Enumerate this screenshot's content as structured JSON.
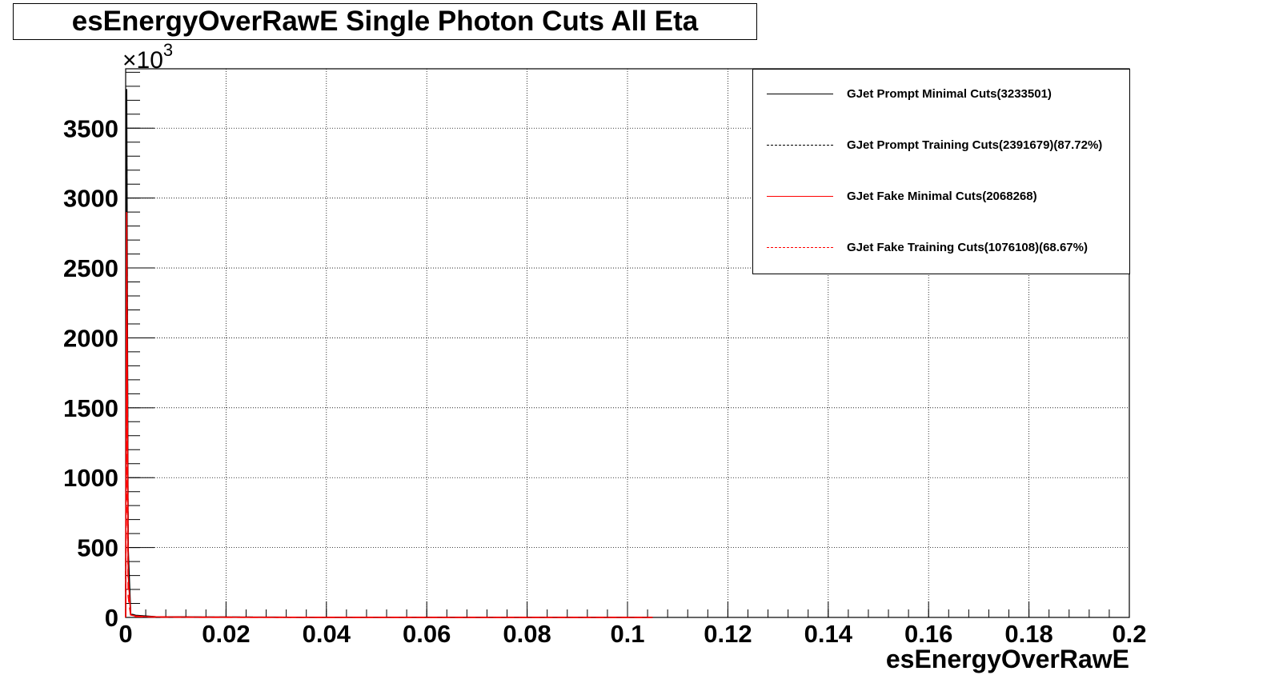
{
  "chart_data": {
    "type": "line",
    "title": "esEnergyOverRawE Single Photon Cuts All Eta",
    "xlabel": "esEnergyOverRawE",
    "ylabel": "",
    "y_multiplier": "×10",
    "y_multiplier_exp": "3",
    "xlim": [
      0,
      0.2
    ],
    "ylim": [
      0,
      3925
    ],
    "grid": true,
    "legend_position": "top-right",
    "x_ticks": [
      0,
      0.02,
      0.04,
      0.06,
      0.08,
      0.1,
      0.12,
      0.14,
      0.16,
      0.18,
      0.2
    ],
    "x_tick_labels": [
      "0",
      "0.02",
      "0.04",
      "0.06",
      "0.08",
      "0.1",
      "0.12",
      "0.14",
      "0.16",
      "0.18",
      "0.2"
    ],
    "y_ticks": [
      0,
      500,
      1000,
      1500,
      2000,
      2500,
      3000,
      3500
    ],
    "y_tick_labels": [
      "0",
      "500",
      "1000",
      "1500",
      "2000",
      "2500",
      "3000",
      "3500"
    ],
    "series": [
      {
        "name": "GJet Prompt Minimal Cuts(3233501)",
        "color": "#000000",
        "dash": "solid",
        "x": [
          0,
          0.0002,
          0.0005,
          0.001,
          0.002,
          0.004,
          0.006,
          0.01,
          0.015,
          0.02,
          0.025,
          0.03,
          0.035,
          0.04,
          0.05,
          0.06,
          0.08,
          0.1,
          0.105
        ],
        "y": [
          0,
          3780,
          500,
          25,
          15,
          10,
          5,
          4,
          3,
          3,
          2,
          2,
          1,
          1,
          1,
          0.5,
          0.3,
          0.1,
          0
        ]
      },
      {
        "name": "GJet Prompt Training Cuts(2391679)(87.72%)",
        "color": "#000000",
        "dash": "dashed",
        "x": [
          0,
          0.0002,
          0.0005,
          0.001,
          0.002,
          0.004,
          0.006,
          0.01,
          0.015,
          0.02,
          0.025,
          0.03,
          0.035,
          0.04,
          0.05,
          0.06,
          0.08,
          0.1,
          0.105
        ],
        "y": [
          0,
          3400,
          420,
          20,
          12,
          8,
          4,
          3,
          2,
          2,
          2,
          1,
          1,
          1,
          0.5,
          0.4,
          0.2,
          0.1,
          0
        ]
      },
      {
        "name": "GJet Fake Minimal Cuts(2068268)",
        "color": "#ff0000",
        "dash": "solid",
        "x": [
          0,
          0.0002,
          0.0005,
          0.001,
          0.002,
          0.004,
          0.006,
          0.01,
          0.015,
          0.02,
          0.025,
          0.03,
          0.035,
          0.04,
          0.05,
          0.06,
          0.08,
          0.1,
          0.105
        ],
        "y": [
          0,
          2900,
          300,
          18,
          10,
          6,
          4,
          3,
          2,
          2,
          1,
          1,
          1,
          0.5,
          0.5,
          0.3,
          0.2,
          0.1,
          0
        ]
      },
      {
        "name": "GJet Fake Training Cuts(1076108)(68.67%)",
        "color": "#ff0000",
        "dash": "dashed",
        "x": [
          0,
          0.0002,
          0.0005,
          0.001,
          0.002,
          0.004,
          0.006,
          0.01,
          0.015,
          0.02,
          0.025,
          0.03,
          0.035,
          0.04,
          0.05,
          0.06,
          0.08,
          0.1,
          0.105
        ],
        "y": [
          0,
          1500,
          150,
          10,
          6,
          4,
          2,
          2,
          1,
          1,
          1,
          0.5,
          0.5,
          0.3,
          0.2,
          0.1,
          0.1,
          0.05,
          0
        ]
      }
    ]
  }
}
